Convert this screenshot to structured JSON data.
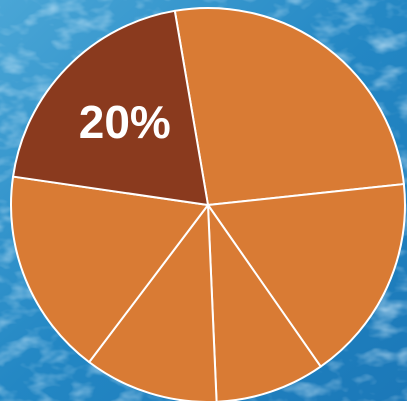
{
  "chart_data": {
    "type": "pie",
    "values": [
      26,
      17,
      9,
      11,
      17,
      20
    ],
    "value_labels": [
      null,
      null,
      null,
      null,
      null,
      "20%"
    ],
    "colors": [
      "#d97b34",
      "#d97b34",
      "#d97b34",
      "#d97b34",
      "#d97b34",
      "#8a3a1e"
    ]
  }
}
